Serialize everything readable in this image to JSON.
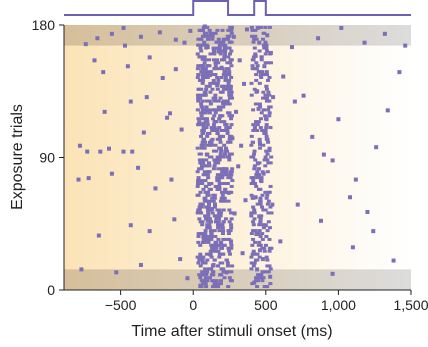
{
  "chart_data": {
    "type": "scatter",
    "title": "",
    "xlabel": "Time after stimuli onset (ms)",
    "ylabel": "Exposure trials",
    "xlim": [
      -890,
      1500
    ],
    "ylim": [
      0,
      180
    ],
    "x_ticks": [
      {
        "value": -500,
        "label": "−500"
      },
      {
        "value": 0,
        "label": "0"
      },
      {
        "value": 500,
        "label": "500"
      },
      {
        "value": 1000,
        "label": "1,000"
      },
      {
        "value": 1500,
        "label": "1,500"
      }
    ],
    "y_ticks": [
      {
        "value": 0,
        "label": "0"
      },
      {
        "value": 90,
        "label": "90"
      },
      {
        "value": 180,
        "label": "180"
      }
    ],
    "grid": false,
    "highlighted_trial_bands": [
      [
        0,
        14
      ],
      [
        166,
        180
      ]
    ],
    "stimulus_windows_ms": [
      [
        0,
        240
      ],
      [
        420,
        500
      ]
    ],
    "series": [
      {
        "name": "",
        "color": "#7b6fb8",
        "points": [
          [
            -740,
            167
          ],
          [
            -660,
            171
          ],
          [
            -560,
            174
          ],
          [
            -480,
            178
          ],
          [
            -470,
            166
          ],
          [
            -360,
            172
          ],
          [
            -230,
            175
          ],
          [
            -120,
            170
          ],
          [
            -60,
            168
          ],
          [
            -20,
            176
          ],
          [
            -680,
            156
          ],
          [
            -620,
            148
          ],
          [
            -450,
            152
          ],
          [
            -300,
            158
          ],
          [
            -210,
            144
          ],
          [
            -120,
            150
          ],
          [
            -610,
            121
          ],
          [
            -430,
            128
          ],
          [
            -320,
            131
          ],
          [
            -180,
            117
          ],
          [
            -780,
            98
          ],
          [
            -730,
            94
          ],
          [
            -640,
            94
          ],
          [
            -580,
            96
          ],
          [
            -480,
            94
          ],
          [
            -420,
            94
          ],
          [
            -340,
            107
          ],
          [
            -160,
            120
          ],
          [
            -80,
            109
          ],
          [
            -790,
            75
          ],
          [
            -720,
            76
          ],
          [
            -560,
            79
          ],
          [
            -380,
            83
          ],
          [
            -260,
            69
          ],
          [
            -150,
            75
          ],
          [
            -650,
            37
          ],
          [
            -430,
            44
          ],
          [
            -300,
            40
          ],
          [
            -130,
            48
          ],
          [
            -770,
            14
          ],
          [
            -530,
            12
          ],
          [
            -360,
            17
          ],
          [
            -90,
            21
          ],
          [
            -40,
            8
          ],
          [
            50,
            3
          ],
          [
            90,
            11
          ],
          [
            120,
            24
          ],
          [
            70,
            36
          ],
          [
            100,
            47
          ],
          [
            130,
            55
          ],
          [
            80,
            61
          ],
          [
            110,
            72
          ],
          [
            60,
            84
          ],
          [
            95,
            92
          ],
          [
            125,
            101
          ],
          [
            70,
            113
          ],
          [
            105,
            122
          ],
          [
            85,
            134
          ],
          [
            115,
            146
          ],
          [
            65,
            157
          ],
          [
            100,
            165
          ],
          [
            120,
            174
          ],
          [
            80,
            179
          ],
          [
            140,
            17
          ],
          [
            160,
            29
          ],
          [
            190,
            43
          ],
          [
            150,
            58
          ],
          [
            180,
            69
          ],
          [
            200,
            77
          ],
          [
            170,
            88
          ],
          [
            190,
            96
          ],
          [
            155,
            109
          ],
          [
            185,
            118
          ],
          [
            205,
            127
          ],
          [
            165,
            139
          ],
          [
            195,
            151
          ],
          [
            175,
            162
          ],
          [
            210,
            170
          ],
          [
            230,
            12
          ],
          [
            260,
            33
          ],
          [
            285,
            52
          ],
          [
            245,
            66
          ],
          [
            310,
            84
          ],
          [
            270,
            103
          ],
          [
            295,
            121
          ],
          [
            250,
            138
          ],
          [
            320,
            156
          ],
          [
            280,
            172
          ],
          [
            340,
            25
          ],
          [
            360,
            61
          ],
          [
            330,
            98
          ],
          [
            350,
            140
          ],
          [
            370,
            177
          ],
          [
            420,
            5
          ],
          [
            440,
            14
          ],
          [
            460,
            27
          ],
          [
            435,
            38
          ],
          [
            455,
            50
          ],
          [
            430,
            63
          ],
          [
            470,
            74
          ],
          [
            445,
            86
          ],
          [
            460,
            99
          ],
          [
            425,
            110
          ],
          [
            450,
            123
          ],
          [
            440,
            135
          ],
          [
            465,
            146
          ],
          [
            430,
            159
          ],
          [
            455,
            168
          ],
          [
            445,
            178
          ],
          [
            480,
            21
          ],
          [
            500,
            44
          ],
          [
            485,
            79
          ],
          [
            505,
            116
          ],
          [
            490,
            152
          ],
          [
            510,
            173
          ],
          [
            530,
            9
          ],
          [
            545,
            58
          ],
          [
            525,
            95
          ],
          [
            550,
            131
          ],
          [
            535,
            161
          ],
          [
            620,
            145
          ],
          [
            700,
            128
          ],
          [
            760,
            132
          ],
          [
            820,
            104
          ],
          [
            900,
            92
          ],
          [
            960,
            88
          ],
          [
            1000,
            116
          ],
          [
            1080,
            63
          ],
          [
            1120,
            75
          ],
          [
            1200,
            53
          ],
          [
            1260,
            97
          ],
          [
            1340,
            122
          ],
          [
            1420,
            148
          ],
          [
            600,
            33
          ],
          [
            720,
            58
          ],
          [
            880,
            47
          ],
          [
            960,
            11
          ],
          [
            1100,
            29
          ],
          [
            1240,
            40
          ],
          [
            1380,
            20
          ],
          [
            680,
            165
          ],
          [
            860,
            171
          ],
          [
            1020,
            178
          ],
          [
            1180,
            168
          ],
          [
            1320,
            174
          ],
          [
            1460,
            166
          ]
        ]
      }
    ]
  }
}
